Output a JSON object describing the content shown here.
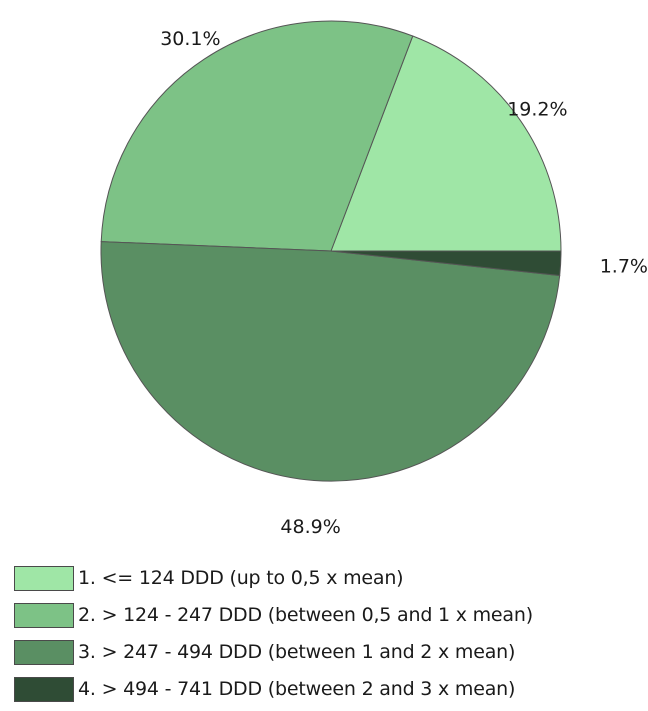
{
  "chart_data": {
    "type": "pie",
    "title": "",
    "categories": [
      "1. <= 124 DDD (up to 0,5 x mean)",
      "2. > 124 - 247 DDD (between 0,5 and 1 x mean)",
      "3. > 247 - 494 DDD (between 1 and 2 x mean)",
      "4. > 494 - 741 DDD (between 2 and 3 x mean)"
    ],
    "values": [
      19.2,
      30.1,
      48.9,
      1.7
    ],
    "labels": [
      "19.2%",
      "30.1%",
      "48.9%",
      "1.7%"
    ],
    "colors": [
      "#9fe6a6",
      "#7dc286",
      "#5a8f63",
      "#2f4c35"
    ],
    "legend_position": "bottom",
    "start": "3 o'clock, counter-clockwise"
  },
  "legend": {
    "items": [
      {
        "label": "1. <= 124 DDD (up to 0,5 x mean)",
        "color": "#9fe6a6"
      },
      {
        "label": "2. > 124 - 247 DDD (between 0,5 and 1 x mean)",
        "color": "#7dc286"
      },
      {
        "label": "3. > 247 - 494 DDD (between 1 and 2 x mean)",
        "color": "#5a8f63"
      },
      {
        "label": "4. > 494 - 741 DDD (between 2 and 3 x mean)",
        "color": "#2f4c35"
      }
    ]
  }
}
